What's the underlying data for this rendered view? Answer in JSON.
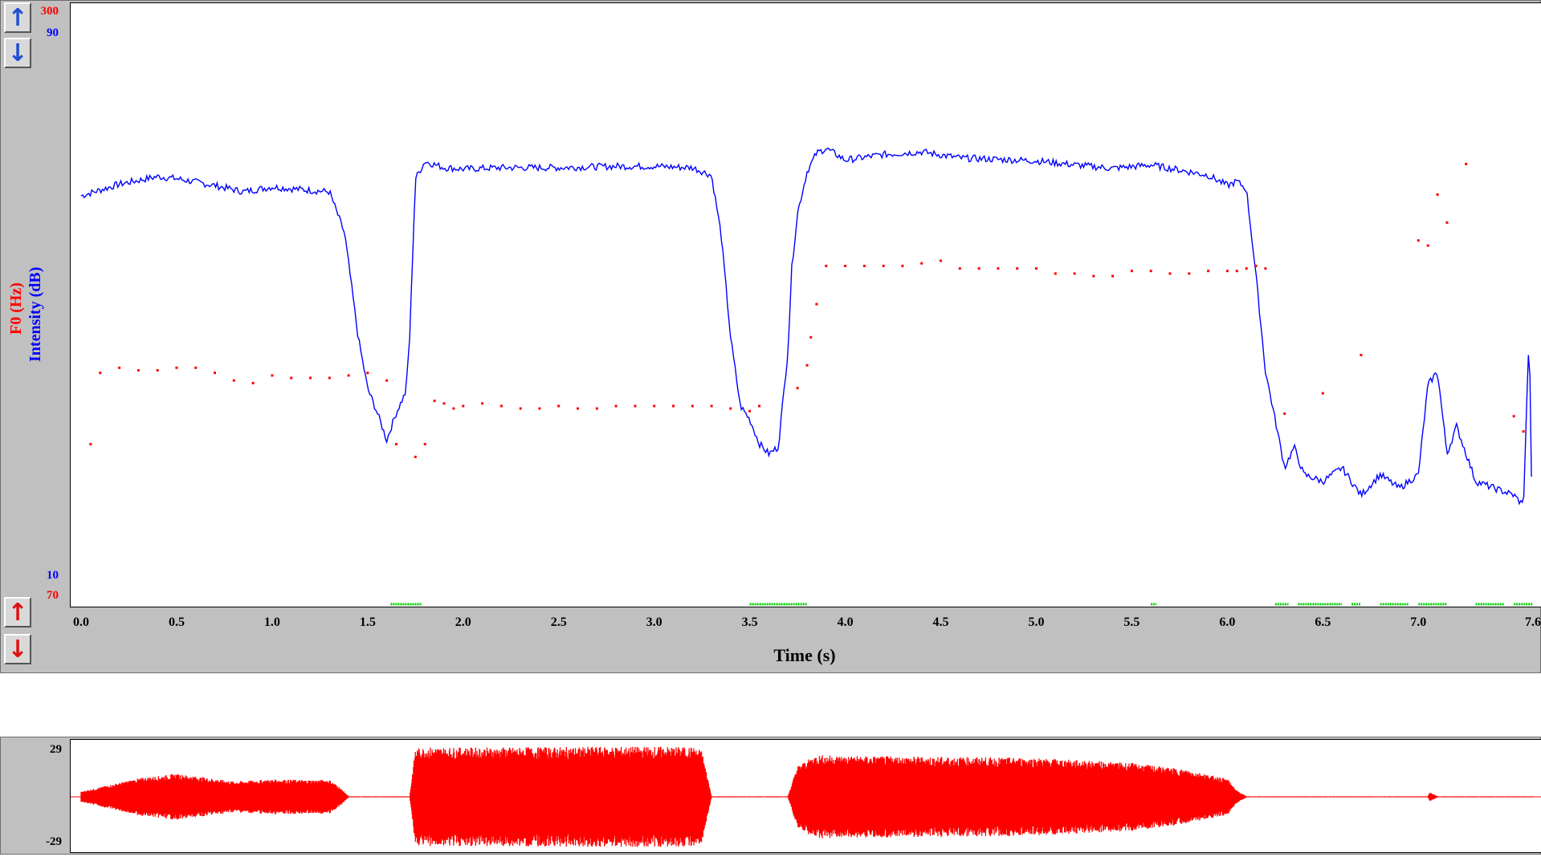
{
  "chart_data": {
    "type": "line",
    "xlabel": "Time (s)",
    "xlim": [
      0.0,
      7.6
    ],
    "x_ticks": [
      "0.0",
      "0.5",
      "1.0",
      "1.5",
      "2.0",
      "2.5",
      "3.0",
      "3.5",
      "4.0",
      "4.5",
      "5.0",
      "5.5",
      "6.0",
      "6.5",
      "7.0",
      "7.6"
    ],
    "y_axes": [
      {
        "label": "F0 (Hz)",
        "min": "70",
        "max": "300",
        "color": "#ff0000"
      },
      {
        "label": "Intensity (dB)",
        "min": "10",
        "max": "90",
        "color": "#0000ff"
      }
    ],
    "series": [
      {
        "name": "Intensity (dB)",
        "color": "#0000ff",
        "style": "line",
        "ylim": [
          10,
          90
        ],
        "x": [
          0.0,
          0.2,
          0.4,
          0.5,
          0.7,
          0.85,
          1.0,
          1.2,
          1.3,
          1.38,
          1.45,
          1.5,
          1.55,
          1.6,
          1.65,
          1.7,
          1.72,
          1.75,
          1.8,
          1.9,
          2.0,
          2.2,
          2.5,
          2.8,
          3.0,
          3.2,
          3.3,
          3.35,
          3.4,
          3.45,
          3.5,
          3.55,
          3.6,
          3.65,
          3.7,
          3.72,
          3.75,
          3.8,
          3.85,
          3.9,
          4.0,
          4.2,
          4.4,
          4.6,
          4.8,
          5.0,
          5.2,
          5.4,
          5.6,
          5.8,
          5.9,
          6.0,
          6.05,
          6.1,
          6.15,
          6.2,
          6.25,
          6.3,
          6.35,
          6.4,
          6.5,
          6.6,
          6.7,
          6.8,
          6.9,
          7.0,
          7.05,
          7.1,
          7.15,
          7.2,
          7.25,
          7.3,
          7.4,
          7.5,
          7.55,
          7.58,
          7.6
        ],
        "y": [
          65.5,
          67.2,
          68.3,
          68.0,
          67.0,
          66.1,
          66.8,
          66.3,
          66.1,
          60.0,
          45.0,
          37.5,
          34.0,
          30.0,
          34.0,
          37.0,
          45.0,
          68.0,
          70.5,
          69.6,
          69.4,
          69.6,
          69.6,
          69.8,
          69.8,
          69.6,
          68.5,
          60.0,
          45.0,
          35.0,
          33.0,
          29.5,
          28.0,
          29.0,
          43.0,
          55.0,
          63.0,
          69.0,
          71.7,
          72.4,
          70.7,
          71.5,
          71.9,
          71.0,
          70.8,
          70.6,
          70.0,
          69.5,
          70.0,
          69.0,
          68.5,
          67.0,
          67.6,
          66.5,
          54.0,
          40.0,
          33.0,
          26.0,
          29.0,
          25.0,
          24.0,
          26.0,
          22.0,
          25.0,
          23.0,
          25.0,
          38.0,
          40.0,
          28.0,
          32.0,
          28.0,
          24.0,
          23.0,
          22.0,
          20.5,
          46.0,
          11.0
        ]
      },
      {
        "name": "F0 (Hz)",
        "color": "#ff0000",
        "style": "dots",
        "ylim": [
          70,
          300
        ],
        "x": [
          0.05,
          0.1,
          0.2,
          0.3,
          0.4,
          0.5,
          0.6,
          0.7,
          0.8,
          0.9,
          1.0,
          1.1,
          1.2,
          1.3,
          1.4,
          1.5,
          1.6,
          1.65,
          1.75,
          1.8,
          1.85,
          1.9,
          1.95,
          2.0,
          2.1,
          2.2,
          2.3,
          2.4,
          2.5,
          2.6,
          2.7,
          2.8,
          2.9,
          3.0,
          3.1,
          3.2,
          3.3,
          3.4,
          3.5,
          3.55,
          3.75,
          3.8,
          3.82,
          3.85,
          3.9,
          4.0,
          4.1,
          4.2,
          4.3,
          4.4,
          4.5,
          4.6,
          4.7,
          4.8,
          4.9,
          5.0,
          5.1,
          5.2,
          5.3,
          5.4,
          5.5,
          5.6,
          5.7,
          5.8,
          5.9,
          6.0,
          6.05,
          6.1,
          6.15,
          6.2,
          6.3,
          6.5,
          6.7,
          7.0,
          7.05,
          7.1,
          7.15,
          7.25,
          7.5,
          7.55
        ],
        "y": [
          130,
          158,
          160,
          159,
          159,
          160,
          160,
          158,
          155,
          154,
          157,
          156,
          156,
          156,
          157,
          158,
          155,
          130,
          125,
          130,
          147,
          146,
          144,
          145,
          146,
          145,
          144,
          144,
          145,
          144,
          144,
          145,
          145,
          145,
          145,
          145,
          145,
          144,
          143,
          145,
          152,
          161,
          172,
          185,
          200,
          200,
          200,
          200,
          200,
          201,
          202,
          199,
          199,
          199,
          199,
          199,
          197,
          197,
          196,
          196,
          198,
          198,
          197,
          197,
          198,
          198,
          198,
          199,
          200,
          199,
          142,
          150,
          165,
          210,
          208,
          228,
          217,
          240,
          141,
          135
        ]
      },
      {
        "name": "Voicing",
        "color": "#00cc00",
        "style": "segments",
        "segments": [
          [
            1.62,
            1.78
          ],
          [
            3.5,
            3.8
          ],
          [
            5.6,
            5.63
          ],
          [
            6.25,
            6.32
          ],
          [
            6.37,
            6.6
          ],
          [
            6.65,
            6.7
          ],
          [
            6.8,
            6.95
          ],
          [
            7.0,
            7.15
          ],
          [
            7.3,
            7.45
          ],
          [
            7.5,
            7.6
          ]
        ]
      }
    ],
    "grid": false,
    "legend": "none"
  },
  "waveform": {
    "color": "#ff0000",
    "ylim": [
      -29,
      29
    ],
    "ytick_max": "29",
    "ytick_min": "-29",
    "envelope_t": [
      0.0,
      0.3,
      0.5,
      0.8,
      1.0,
      1.2,
      1.3,
      1.35,
      1.4,
      1.72,
      1.75,
      1.8,
      2.0,
      2.5,
      3.0,
      3.2,
      3.25,
      3.3,
      3.7,
      3.75,
      3.85,
      4.0,
      4.5,
      5.0,
      5.5,
      5.8,
      6.0,
      6.05,
      6.1,
      6.15,
      7.05,
      7.06,
      7.1,
      7.6
    ],
    "envelope_a": [
      0.1,
      0.36,
      0.45,
      0.3,
      0.34,
      0.33,
      0.33,
      0.2,
      0.01,
      0.01,
      0.94,
      0.97,
      0.96,
      0.97,
      0.98,
      0.97,
      0.9,
      0.01,
      0.01,
      0.6,
      0.82,
      0.8,
      0.78,
      0.76,
      0.66,
      0.52,
      0.35,
      0.12,
      0.01,
      0.01,
      0.01,
      0.09,
      0.01,
      0.01
    ]
  },
  "controls": {
    "up_blue": "↑",
    "down_blue": "↓",
    "up_red": "↑",
    "down_red": "↓"
  }
}
